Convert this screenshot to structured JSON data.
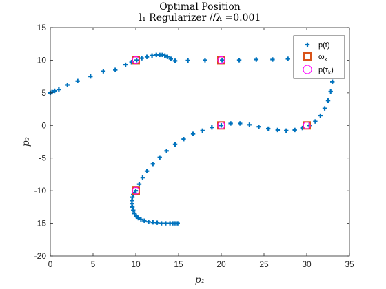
{
  "chart_data": {
    "type": "scatter",
    "title": "Optimal Position",
    "subtitle": "l₁ Regularizer //λ =0.001",
    "xlabel": "p₁",
    "ylabel": "p₂",
    "xlim": [
      0,
      35
    ],
    "ylim": [
      -20,
      15
    ],
    "xticks": [
      0,
      5,
      10,
      15,
      20,
      25,
      30,
      35
    ],
    "yticks": [
      -20,
      -15,
      -10,
      -5,
      0,
      5,
      10,
      15
    ],
    "grid": false,
    "legend_position": "top-right",
    "colors": {
      "trajectory": "#0072BD",
      "omega": "#D95319",
      "p_tau": "#FF00FF"
    },
    "series": [
      {
        "name": "p(t)",
        "marker": "plus",
        "x": [
          14.9,
          14.7,
          14.5,
          14.3,
          14.0,
          13.5,
          13.0,
          12.5,
          12.0,
          11.5,
          11.0,
          10.6,
          10.3,
          10.05,
          9.85,
          9.7,
          9.6,
          9.55,
          9.55,
          9.6,
          9.7,
          9.85,
          10.0,
          10.4,
          10.8,
          11.3,
          12.0,
          12.8,
          13.6,
          14.6,
          15.6,
          16.7,
          17.8,
          18.9,
          20.0,
          21.1,
          22.2,
          23.3,
          24.4,
          25.5,
          26.6,
          27.6,
          28.6,
          29.5,
          30.3,
          31.0,
          31.6,
          32.1,
          32.5,
          32.8,
          33.0,
          33.05,
          33.0,
          32.8,
          32.4,
          31.8,
          30.8,
          29.4,
          27.8,
          26.0,
          24.1,
          22.1,
          20.1,
          18.1,
          16.1,
          14.6,
          14.1,
          13.7,
          13.4,
          13.1,
          12.8,
          12.4,
          11.9,
          11.3,
          10.7,
          10.1,
          9.5,
          8.8,
          7.6,
          6.2,
          4.7,
          3.2,
          2.0,
          1.0,
          0.5,
          0.2,
          0.0
        ],
        "y": [
          -15.0,
          -15.0,
          -15.0,
          -15.0,
          -15.0,
          -15.0,
          -15.0,
          -14.9,
          -14.85,
          -14.75,
          -14.6,
          -14.4,
          -14.2,
          -13.9,
          -13.5,
          -13.0,
          -12.5,
          -12.0,
          -11.5,
          -11.0,
          -10.6,
          -10.3,
          -10.0,
          -9.0,
          -8.0,
          -7.0,
          -5.9,
          -4.9,
          -3.9,
          -2.9,
          -2.1,
          -1.3,
          -0.8,
          -0.3,
          0.0,
          0.3,
          0.3,
          0.1,
          -0.2,
          -0.5,
          -0.7,
          -0.8,
          -0.7,
          -0.4,
          0.0,
          0.6,
          1.5,
          2.6,
          3.8,
          5.2,
          6.7,
          8.3,
          9.6,
          10.2,
          10.4,
          10.4,
          10.3,
          10.2,
          10.2,
          10.1,
          10.1,
          10.0,
          10.0,
          10.0,
          9.95,
          9.9,
          10.2,
          10.5,
          10.7,
          10.8,
          10.8,
          10.8,
          10.7,
          10.5,
          10.3,
          10.0,
          9.7,
          9.3,
          8.5,
          8.3,
          7.5,
          6.8,
          6.2,
          5.5,
          5.3,
          5.1,
          5.0
        ]
      },
      {
        "name": "ω_k",
        "marker": "square",
        "x": [
          10,
          20,
          30,
          20,
          10
        ],
        "y": [
          -10,
          0,
          0,
          10,
          10
        ]
      },
      {
        "name": "p(τ_k)",
        "marker": "circle",
        "x": [
          10,
          20,
          30,
          20,
          10
        ],
        "y": [
          -10,
          0,
          0,
          10,
          10
        ]
      }
    ],
    "legend": [
      {
        "label_main": "p(t)",
        "label_sub": ""
      },
      {
        "label_main": "ω",
        "label_sub": "k"
      },
      {
        "label_main": "p(τ",
        "label_sub": "k",
        "label_end": ")"
      }
    ]
  }
}
